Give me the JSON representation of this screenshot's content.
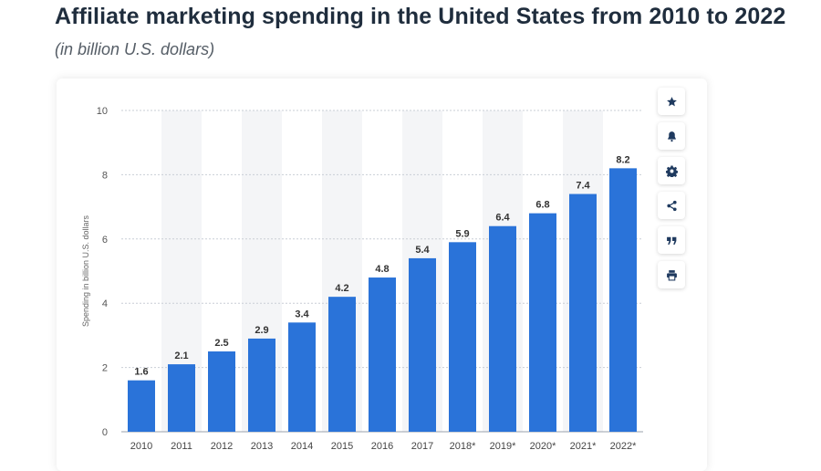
{
  "header": {
    "title": "Affiliate marketing spending in the United States from 2010 to 2022",
    "subtitle": "(in billion U.S. dollars)"
  },
  "toolbar": {
    "buttons": [
      {
        "icon": "star-icon"
      },
      {
        "icon": "bell-icon"
      },
      {
        "icon": "gear-icon"
      },
      {
        "icon": "share-icon"
      },
      {
        "icon": "quote-icon"
      },
      {
        "icon": "print-icon"
      }
    ]
  },
  "colors": {
    "bar": "#2a73d9",
    "band": "#f4f5f7",
    "grid": "#c9ced6",
    "text": "#333333"
  },
  "chart_data": {
    "type": "bar",
    "categories": [
      "2010",
      "2011",
      "2012",
      "2013",
      "2014",
      "2015",
      "2016",
      "2017",
      "2018*",
      "2019*",
      "2020*",
      "2021*",
      "2022*"
    ],
    "values": [
      1.6,
      2.1,
      2.5,
      2.9,
      3.4,
      4.2,
      4.8,
      5.4,
      5.9,
      6.4,
      6.8,
      7.4,
      8.2
    ],
    "data_labels": [
      "1.6",
      "2.1",
      "2.5",
      "2.9",
      "3.4",
      "4.2",
      "4.8",
      "5.4",
      "5.9",
      "6.4",
      "6.8",
      "7.4",
      "8.2"
    ],
    "ylabel": "Spending in billion U.S. dollars",
    "ylim": [
      0,
      10
    ],
    "yticks": [
      0,
      2,
      4,
      6,
      8,
      10
    ],
    "grid": true,
    "legend": "none"
  }
}
